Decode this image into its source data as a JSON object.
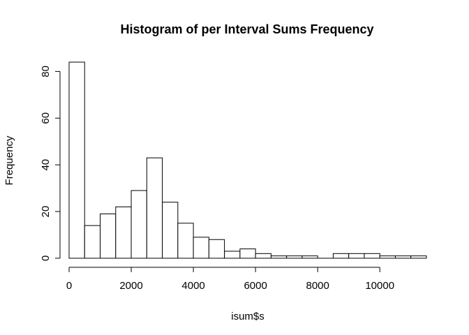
{
  "chart_data": {
    "type": "bar",
    "title": "Histogram of per Interval Sums Frequency",
    "xlabel": "isum$s",
    "ylabel": "Frequency",
    "bin_width": 500,
    "bins_start": [
      0,
      500,
      1000,
      1500,
      2000,
      2500,
      3000,
      3500,
      4000,
      4500,
      5000,
      5500,
      6000,
      6500,
      7000,
      7500,
      8000,
      8500,
      9000,
      9500,
      10000,
      10500,
      11000
    ],
    "values": [
      84,
      14,
      19,
      22,
      29,
      43,
      24,
      15,
      9,
      8,
      3,
      4,
      2,
      1,
      1,
      1,
      0,
      2,
      2,
      2,
      1,
      1,
      1
    ],
    "xlim": [
      0,
      11500
    ],
    "ylim": [
      0,
      84
    ],
    "x_ticks": [
      "0",
      "2000",
      "4000",
      "6000",
      "8000",
      "10000"
    ],
    "x_tick_values": [
      0,
      2000,
      4000,
      6000,
      8000,
      10000
    ],
    "y_ticks": [
      "0",
      "20",
      "40",
      "60",
      "80"
    ],
    "y_tick_values": [
      0,
      20,
      40,
      60,
      80
    ],
    "grid": false,
    "bar_fill": "#ffffff",
    "bar_stroke": "#000000"
  }
}
